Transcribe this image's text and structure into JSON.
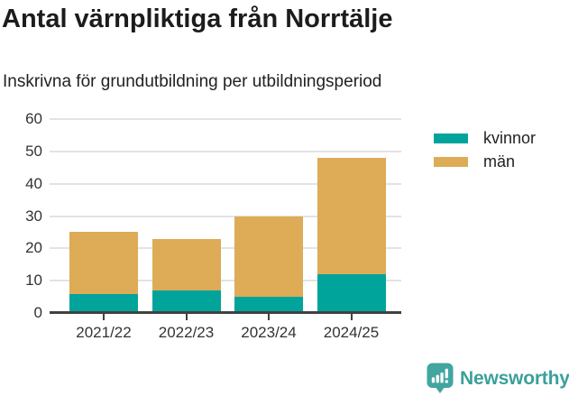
{
  "title": "Antal värnpliktiga från Norrtälje",
  "subtitle": "Inskrivna för grundutbildning per utbildningsperiod",
  "chart_data": {
    "type": "bar",
    "stacked": true,
    "title": "Antal värnpliktiga från Norrtälje",
    "subtitle": "Inskrivna för grundutbildning per utbildningsperiod",
    "categories": [
      "2021/22",
      "2022/23",
      "2023/24",
      "2024/25"
    ],
    "series": [
      {
        "name": "kvinnor",
        "color": "#00a49b",
        "values": [
          6,
          7,
          5,
          12
        ]
      },
      {
        "name": "män",
        "color": "#deab56",
        "values": [
          19,
          16,
          25,
          36
        ]
      }
    ],
    "totals": [
      25,
      23,
      30,
      48
    ],
    "ylim": [
      0,
      60
    ],
    "yticks": [
      0,
      10,
      20,
      30,
      40,
      50,
      60
    ],
    "grid": true,
    "legend_position": "right-top"
  },
  "legend": {
    "items": [
      {
        "label": "kvinnor",
        "color": "#00a49b"
      },
      {
        "label": "män",
        "color": "#deab56"
      }
    ]
  },
  "footer": {
    "brand": "Newsworthy",
    "brand_color": "#3ba09b"
  }
}
